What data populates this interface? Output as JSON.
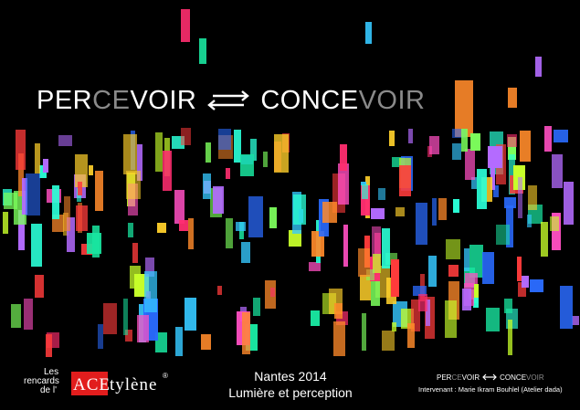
{
  "headline": {
    "left_part1": "PER",
    "left_part2": "CE",
    "left_part3": "VOIR",
    "right_part1": "CONCE",
    "right_part2": "VOIR"
  },
  "logo": {
    "line1": "Les",
    "line2": "rencards",
    "line3": "de l'",
    "ace": "ACE",
    "rest": "tylène",
    "reg": "®"
  },
  "event": {
    "city_year": "Nantes 2014",
    "theme": "Lumière et perception"
  },
  "mini_headline": {
    "left_part1": "PER",
    "left_part2": "CE",
    "left_part3": "VOIR",
    "right_part1": "CONCE",
    "right_part2": "VOIR"
  },
  "speaker": "Intervenant : Marie Ikram Bouhlel (Atelier dada)",
  "colors": {
    "background": "#000000",
    "logo_red": "#e21d1d",
    "dim_text": "#8a8a8a",
    "palette": [
      "#ff2d6f",
      "#19e6a0",
      "#35c8ff",
      "#b46bff",
      "#ff8a2a",
      "#c7ff2a",
      "#ff4fc2",
      "#2a6bff",
      "#ffd02a",
      "#2affd7",
      "#ff3b3b",
      "#7cff5c"
    ]
  },
  "icons": {
    "headline_arrows": "double-arrow-icon",
    "mini_arrows": "double-arrow-icon"
  }
}
